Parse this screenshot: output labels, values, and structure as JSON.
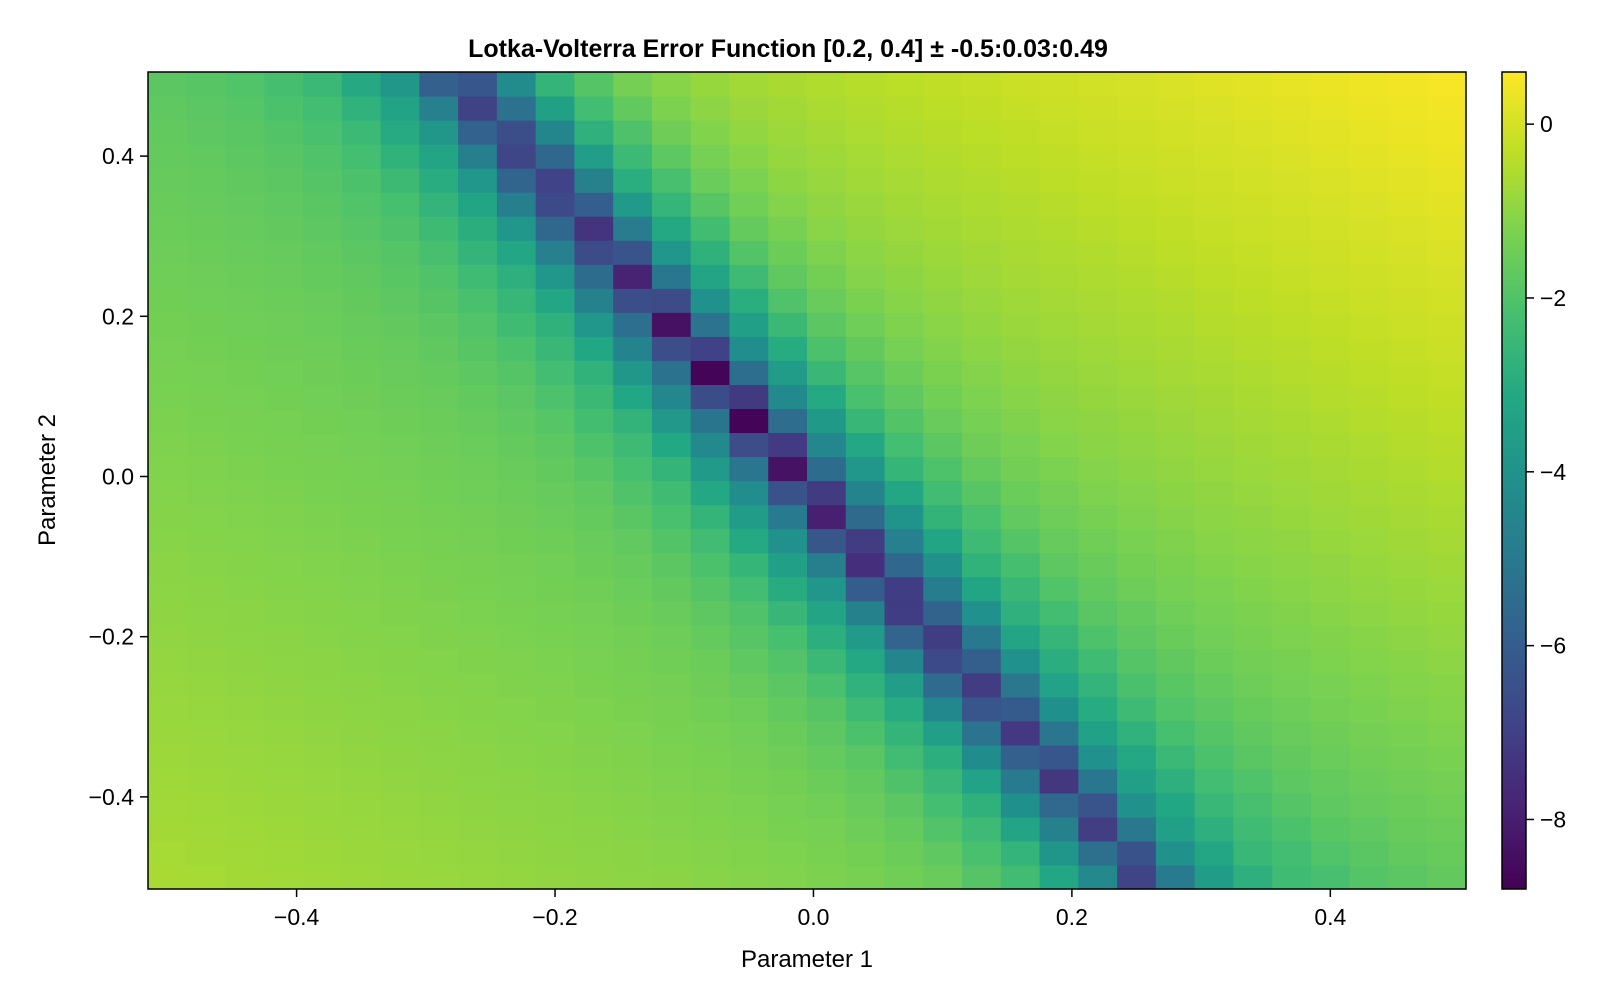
{
  "chart_data": {
    "type": "heatmap",
    "title": "Lotka-Volterra Error Function [0.2, 0.4] ± -0.5:0.03:0.49",
    "xlabel": "Parameter 1",
    "ylabel": "Parameter 2",
    "center": [
      0.2,
      0.4
    ],
    "offsets": {
      "start": -0.5,
      "step": 0.03,
      "stop": 0.49
    },
    "xlim": [
      -0.515,
      0.505
    ],
    "ylim": [
      -0.515,
      0.505
    ],
    "x_ticks": [
      {
        "value": -0.4,
        "label": "−0.4"
      },
      {
        "value": -0.2,
        "label": "−0.2"
      },
      {
        "value": 0.0,
        "label": "0.0"
      },
      {
        "value": 0.2,
        "label": "0.2"
      },
      {
        "value": 0.4,
        "label": "0.4"
      }
    ],
    "y_ticks": [
      {
        "value": -0.4,
        "label": "−0.4"
      },
      {
        "value": -0.2,
        "label": "−0.2"
      },
      {
        "value": 0.0,
        "label": "0.0"
      },
      {
        "value": 0.2,
        "label": "0.2"
      },
      {
        "value": 0.4,
        "label": "0.4"
      }
    ],
    "colorbar": {
      "colormap": "viridis",
      "range": [
        -8.8,
        0.6
      ],
      "ticks": [
        {
          "value": 0,
          "label": "0"
        },
        {
          "value": -2,
          "label": "−2"
        },
        {
          "value": -4,
          "label": "−4"
        },
        {
          "value": -6,
          "label": "−6"
        },
        {
          "value": -8,
          "label": "−8"
        }
      ]
    },
    "value_model": {
      "description_of_grid": "log error surface; minimum valley along p2 = -1.89*p1 - 0.02",
      "valley_slope": -1.89,
      "valley_intercept": -0.02,
      "background_min": -1.9,
      "background_max_top_right": 0.6,
      "background_max_bottom_left": -0.6,
      "valley_depth_center": -8.7
    }
  }
}
